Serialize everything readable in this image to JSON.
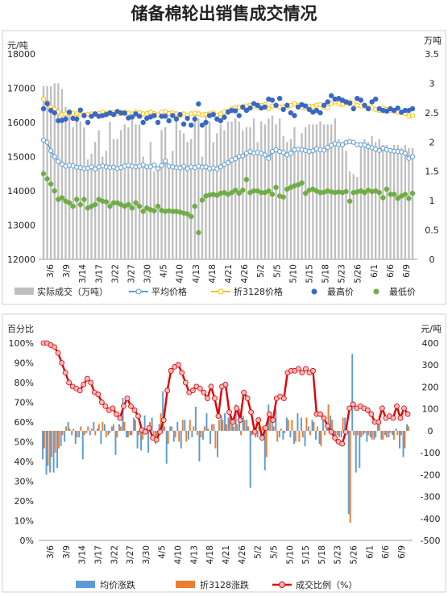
{
  "title": "储备棉轮出销售成交情况",
  "colors": {
    "volume": "#bfbfbf",
    "avg": "#5b9bd5",
    "conv": "#ffc000",
    "high": "#3a67c4",
    "low": "#70ad47",
    "avg_chg": "#5b9bd5",
    "conv_chg": "#ed7d31",
    "ratio": "#e00000"
  },
  "chart_data": [
    {
      "type": "bar+line+scatter",
      "y_left_label": "元/吨",
      "y_right_label": "万吨",
      "ylim_left": [
        12000,
        18000
      ],
      "ylim_right": [
        0,
        3.5
      ],
      "yticks_left": [
        "12000",
        "13000",
        "14000",
        "15000",
        "16000",
        "17000",
        "18000"
      ],
      "yticks_right": [
        "0",
        "0.5",
        "1",
        "1.5",
        "2",
        "2.5",
        "3",
        "3.5"
      ],
      "x_tick_labels": [
        "3/6",
        "3/9",
        "3/14",
        "3/17",
        "3/22",
        "3/27",
        "3/30",
        "4/5",
        "4/10",
        "4/13",
        "4/18",
        "4/21",
        "4/26",
        "5/2",
        "5/5",
        "5/10",
        "5/15",
        "5/18",
        "5/23",
        "5/26",
        "6/1",
        "6/6",
        "6/9"
      ],
      "legend": [
        "实际成交（万吨）",
        "平均价格",
        "折3128价格",
        "最高价",
        "最低价"
      ],
      "series": [
        {
          "name": "实际成交（万吨）",
          "values": [
            2.95,
            2.95,
            2.95,
            3.0,
            3.0,
            2.9,
            2.6,
            2.55,
            2.25,
            2.5,
            2.35,
            2.25,
            1.7,
            1.8,
            2.0,
            2.2,
            1.75,
            1.85,
            2.35,
            2.05,
            2.05,
            2.2,
            2.3,
            2.25,
            2.45,
            2.3,
            2.3,
            1.75,
            1.6,
            2.0,
            1.5,
            1.55,
            2.2,
            2.25,
            1.6,
            1.85,
            2.45,
            2.2,
            2.15,
            2.0,
            2.05,
            2.45,
            2.4,
            1.75,
            2.45,
            2.35,
            2.0,
            2.15,
            2.3,
            2.2,
            2.35,
            2.35,
            2.4,
            2.35,
            2.2,
            2.25,
            2.25,
            2.4,
            2.0,
            2.35,
            2.3,
            2.4,
            2.45,
            2.3,
            2.4,
            2.1,
            2.0,
            2.05,
            2.25,
            1.9,
            2.15,
            2.25,
            2.3,
            2.3,
            2.3,
            2.35,
            2.3,
            2.3,
            2.3,
            2.4,
            2.05,
            2.0,
            1.85,
            1.5,
            1.45,
            1.4,
            2.0,
            2.05,
            2.0,
            2.1,
            2.0,
            2.05,
            1.95,
            1.95,
            1.9,
            1.95,
            1.95,
            1.9,
            1.95,
            1.9,
            1.9
          ]
        },
        {
          "name": "平均价格",
          "values": [
            15480,
            15420,
            15170,
            15000,
            14860,
            14780,
            14720,
            14750,
            14730,
            14690,
            14680,
            14650,
            14660,
            14700,
            14640,
            14700,
            14730,
            14700,
            14680,
            14690,
            14650,
            14680,
            14720,
            14750,
            14720,
            14700,
            14720,
            14760,
            14700,
            14710,
            14760,
            14650,
            14740,
            14880,
            14720,
            14700,
            14680,
            14670,
            14720,
            14650,
            14700,
            14680,
            14720,
            14690,
            14700,
            14650,
            14670,
            14640,
            14700,
            14770,
            14820,
            14900,
            14940,
            15010,
            15020,
            15100,
            15150,
            15100,
            15120,
            15100,
            15050,
            14950,
            15150,
            15200,
            15150,
            15120,
            15050,
            15100,
            15200,
            15220,
            15200,
            15180,
            15150,
            15170,
            15230,
            15200,
            15190,
            15270,
            15330,
            15380,
            15350,
            15350,
            15420,
            15440,
            15420,
            15350,
            15350,
            15340,
            15290,
            15260,
            15220,
            15180,
            15250,
            15200,
            15180,
            15160,
            15150,
            15140,
            15100,
            14950,
            15000
          ]
        },
        {
          "name": "折3128价格",
          "values": [
            16680,
            16580,
            16450,
            16380,
            16300,
            16230,
            16250,
            16260,
            16270,
            16250,
            16220,
            16220,
            16240,
            16250,
            16230,
            16260,
            16300,
            16270,
            16250,
            16280,
            16250,
            16260,
            16300,
            16270,
            16250,
            16300,
            16280,
            16250,
            16260,
            16300,
            16260,
            16220,
            16300,
            16320,
            16260,
            16280,
            16250,
            16200,
            16250,
            16200,
            16250,
            16270,
            16250,
            16220,
            16240,
            16250,
            16280,
            16200,
            16250,
            16300,
            16330,
            16400,
            16420,
            16450,
            16430,
            16480,
            16500,
            16480,
            16450,
            16500,
            16520,
            16400,
            16480,
            16500,
            16450,
            16460,
            16450,
            16500,
            16550,
            16500,
            16450,
            16420,
            16480,
            16460,
            16500,
            16520,
            16450,
            16430,
            16550,
            16600,
            16550,
            16520,
            16580,
            16600,
            16550,
            16500,
            16480,
            16450,
            16440,
            16420,
            16380,
            16350,
            16420,
            16380,
            16350,
            16340,
            16300,
            16280,
            16260,
            16180,
            16200
          ]
        },
        {
          "name": "最高价",
          "values": [
            16400,
            16550,
            16350,
            16280,
            16050,
            16060,
            16100,
            16300,
            16120,
            16100,
            16360,
            16200,
            16000,
            16180,
            16250,
            16180,
            16200,
            16230,
            16280,
            16230,
            16320,
            16280,
            16270,
            16130,
            16160,
            16250,
            16180,
            16000,
            16120,
            16160,
            16200,
            16000,
            16180,
            16180,
            16050,
            16200,
            16100,
            16230,
            15950,
            16120,
            15920,
            16100,
            16540,
            15920,
            16000,
            16200,
            16230,
            16100,
            16050,
            16150,
            16300,
            16350,
            16340,
            16200,
            16450,
            16350,
            16420,
            16550,
            16500,
            16420,
            16450,
            16680,
            16650,
            16500,
            16700,
            16380,
            16500,
            16280,
            16200,
            16450,
            16520,
            16480,
            16380,
            16300,
            16350,
            16280,
            16500,
            16600,
            16780,
            16680,
            16700,
            16650,
            16600,
            16560,
            16400,
            16700,
            16650,
            16500,
            16400,
            16600,
            16680,
            16400,
            16350,
            16330,
            16400,
            16350,
            16420,
            16300,
            16350,
            16350,
            16400
          ]
        },
        {
          "name": "最低价",
          "values": [
            14500,
            14350,
            14200,
            14000,
            13750,
            13800,
            13700,
            13650,
            13550,
            13750,
            13600,
            13750,
            13500,
            13550,
            13600,
            13750,
            13700,
            13680,
            13550,
            13650,
            13650,
            13600,
            13550,
            13600,
            13500,
            13650,
            13550,
            13400,
            13500,
            13450,
            13420,
            13550,
            13430,
            13400,
            13420,
            13400,
            13400,
            13380,
            13350,
            13330,
            13250,
            13550,
            12780,
            13730,
            13850,
            13880,
            13900,
            13870,
            13930,
            13950,
            13900,
            13950,
            14020,
            13930,
            14020,
            14330,
            13950,
            14000,
            14000,
            13950,
            13950,
            14000,
            13900,
            14100,
            13850,
            13820,
            14050,
            14100,
            14150,
            14180,
            14230,
            13930,
            14020,
            14050,
            14000,
            13950,
            13960,
            14000,
            13970,
            13950,
            13970,
            13950,
            13980,
            13700,
            13950,
            13970,
            14000,
            13950,
            14020,
            13980,
            14000,
            13950,
            13800,
            14050,
            13900,
            13900,
            13780,
            13850,
            13900,
            13780,
            13930
          ]
        }
      ]
    },
    {
      "type": "bar+line",
      "y_left_label": "百分比",
      "y_right_label": "元/吨",
      "ylim_left": [
        0,
        100
      ],
      "ylim_right": [
        -500,
        400
      ],
      "yticks_left": [
        "0%",
        "10%",
        "20%",
        "30%",
        "40%",
        "50%",
        "60%",
        "70%",
        "80%",
        "90%",
        "100%"
      ],
      "yticks_right": [
        "-500",
        "-400",
        "-300",
        "-200",
        "-100",
        "0",
        "100",
        "200",
        "300",
        "400"
      ],
      "x_tick_labels": [
        "3/6",
        "3/9",
        "3/14",
        "3/17",
        "3/22",
        "3/27",
        "3/30",
        "4/5",
        "4/10",
        "4/13",
        "4/18",
        "4/21",
        "4/26",
        "5/2",
        "5/5",
        "5/10",
        "5/15",
        "5/18",
        "5/23",
        "5/26",
        "6/1",
        "6/6",
        "6/9"
      ],
      "legend": [
        "均价涨跌",
        "折3128涨跌",
        "成交比例（%）"
      ],
      "series": [
        {
          "name": "均价涨跌",
          "values": [
            -130,
            -200,
            -190,
            -190,
            -170,
            -70,
            -50,
            40,
            -20,
            -60,
            -30,
            -130,
            -10,
            -20,
            40,
            10,
            -60,
            30,
            -20,
            20,
            -110,
            30,
            150,
            -30,
            -20,
            60,
            -80,
            -90,
            70,
            -100,
            60,
            -60,
            30,
            180,
            -150,
            20,
            -50,
            40,
            -80,
            50,
            -40,
            -30,
            110,
            -140,
            -40,
            80,
            -60,
            30,
            -120,
            70,
            80,
            60,
            40,
            120,
            100,
            70,
            50,
            -260,
            30,
            -30,
            -40,
            -180,
            120,
            40,
            100,
            -30,
            -40,
            60,
            -30,
            -60,
            80,
            60,
            -70,
            20,
            50,
            -40,
            -60,
            60,
            20,
            70,
            -20,
            -20,
            -30,
            60,
            -380,
            350,
            -190,
            -170,
            -20,
            -50,
            -30,
            -40,
            50,
            -40,
            -20,
            -30,
            -20,
            10,
            -80,
            -120,
            30
          ]
        },
        {
          "name": "折3128涨跌",
          "values": [
            -80,
            -160,
            -120,
            -100,
            -80,
            -20,
            20,
            10,
            10,
            -30,
            20,
            -20,
            20,
            10,
            -20,
            30,
            40,
            -30,
            -10,
            30,
            -30,
            20,
            40,
            -30,
            -20,
            50,
            -20,
            -40,
            10,
            40,
            -40,
            -40,
            80,
            20,
            -60,
            20,
            -30,
            -50,
            50,
            -50,
            50,
            20,
            -20,
            -30,
            20,
            10,
            30,
            -80,
            50,
            50,
            30,
            70,
            20,
            30,
            -20,
            50,
            20,
            -20,
            -30,
            50,
            20,
            -120,
            80,
            20,
            -50,
            10,
            -10,
            50,
            50,
            -50,
            -50,
            -30,
            60,
            -20,
            40,
            20,
            -70,
            -20,
            120,
            50,
            -50,
            -30,
            60,
            20,
            -420,
            -20,
            -20,
            -30,
            -10,
            -20,
            -40,
            -30,
            70,
            -40,
            -30,
            -10,
            -40,
            -20,
            -20,
            -80,
            20
          ]
        },
        {
          "name": "成交比例（%）",
          "values": [
            100,
            100,
            99,
            98,
            95,
            90,
            85,
            80,
            78,
            77,
            76,
            79,
            82,
            80,
            75,
            74,
            70,
            68,
            66,
            67,
            64,
            62,
            68,
            72,
            68,
            66,
            63,
            56,
            55,
            57,
            52,
            51,
            55,
            61,
            76,
            86,
            88,
            89,
            85,
            80,
            75,
            76,
            78,
            77,
            75,
            72,
            78,
            72,
            63,
            78,
            79,
            65,
            60,
            67,
            61,
            75,
            72,
            65,
            55,
            61,
            52,
            57,
            64,
            61,
            72,
            73,
            72,
            85,
            86,
            86,
            87,
            85,
            87,
            85,
            86,
            64,
            64,
            62,
            58,
            55,
            52,
            50,
            49,
            55,
            67,
            69,
            67,
            68,
            67,
            66,
            64,
            60,
            60,
            67,
            62,
            63,
            62,
            68,
            62,
            67,
            64
          ]
        }
      ]
    }
  ]
}
